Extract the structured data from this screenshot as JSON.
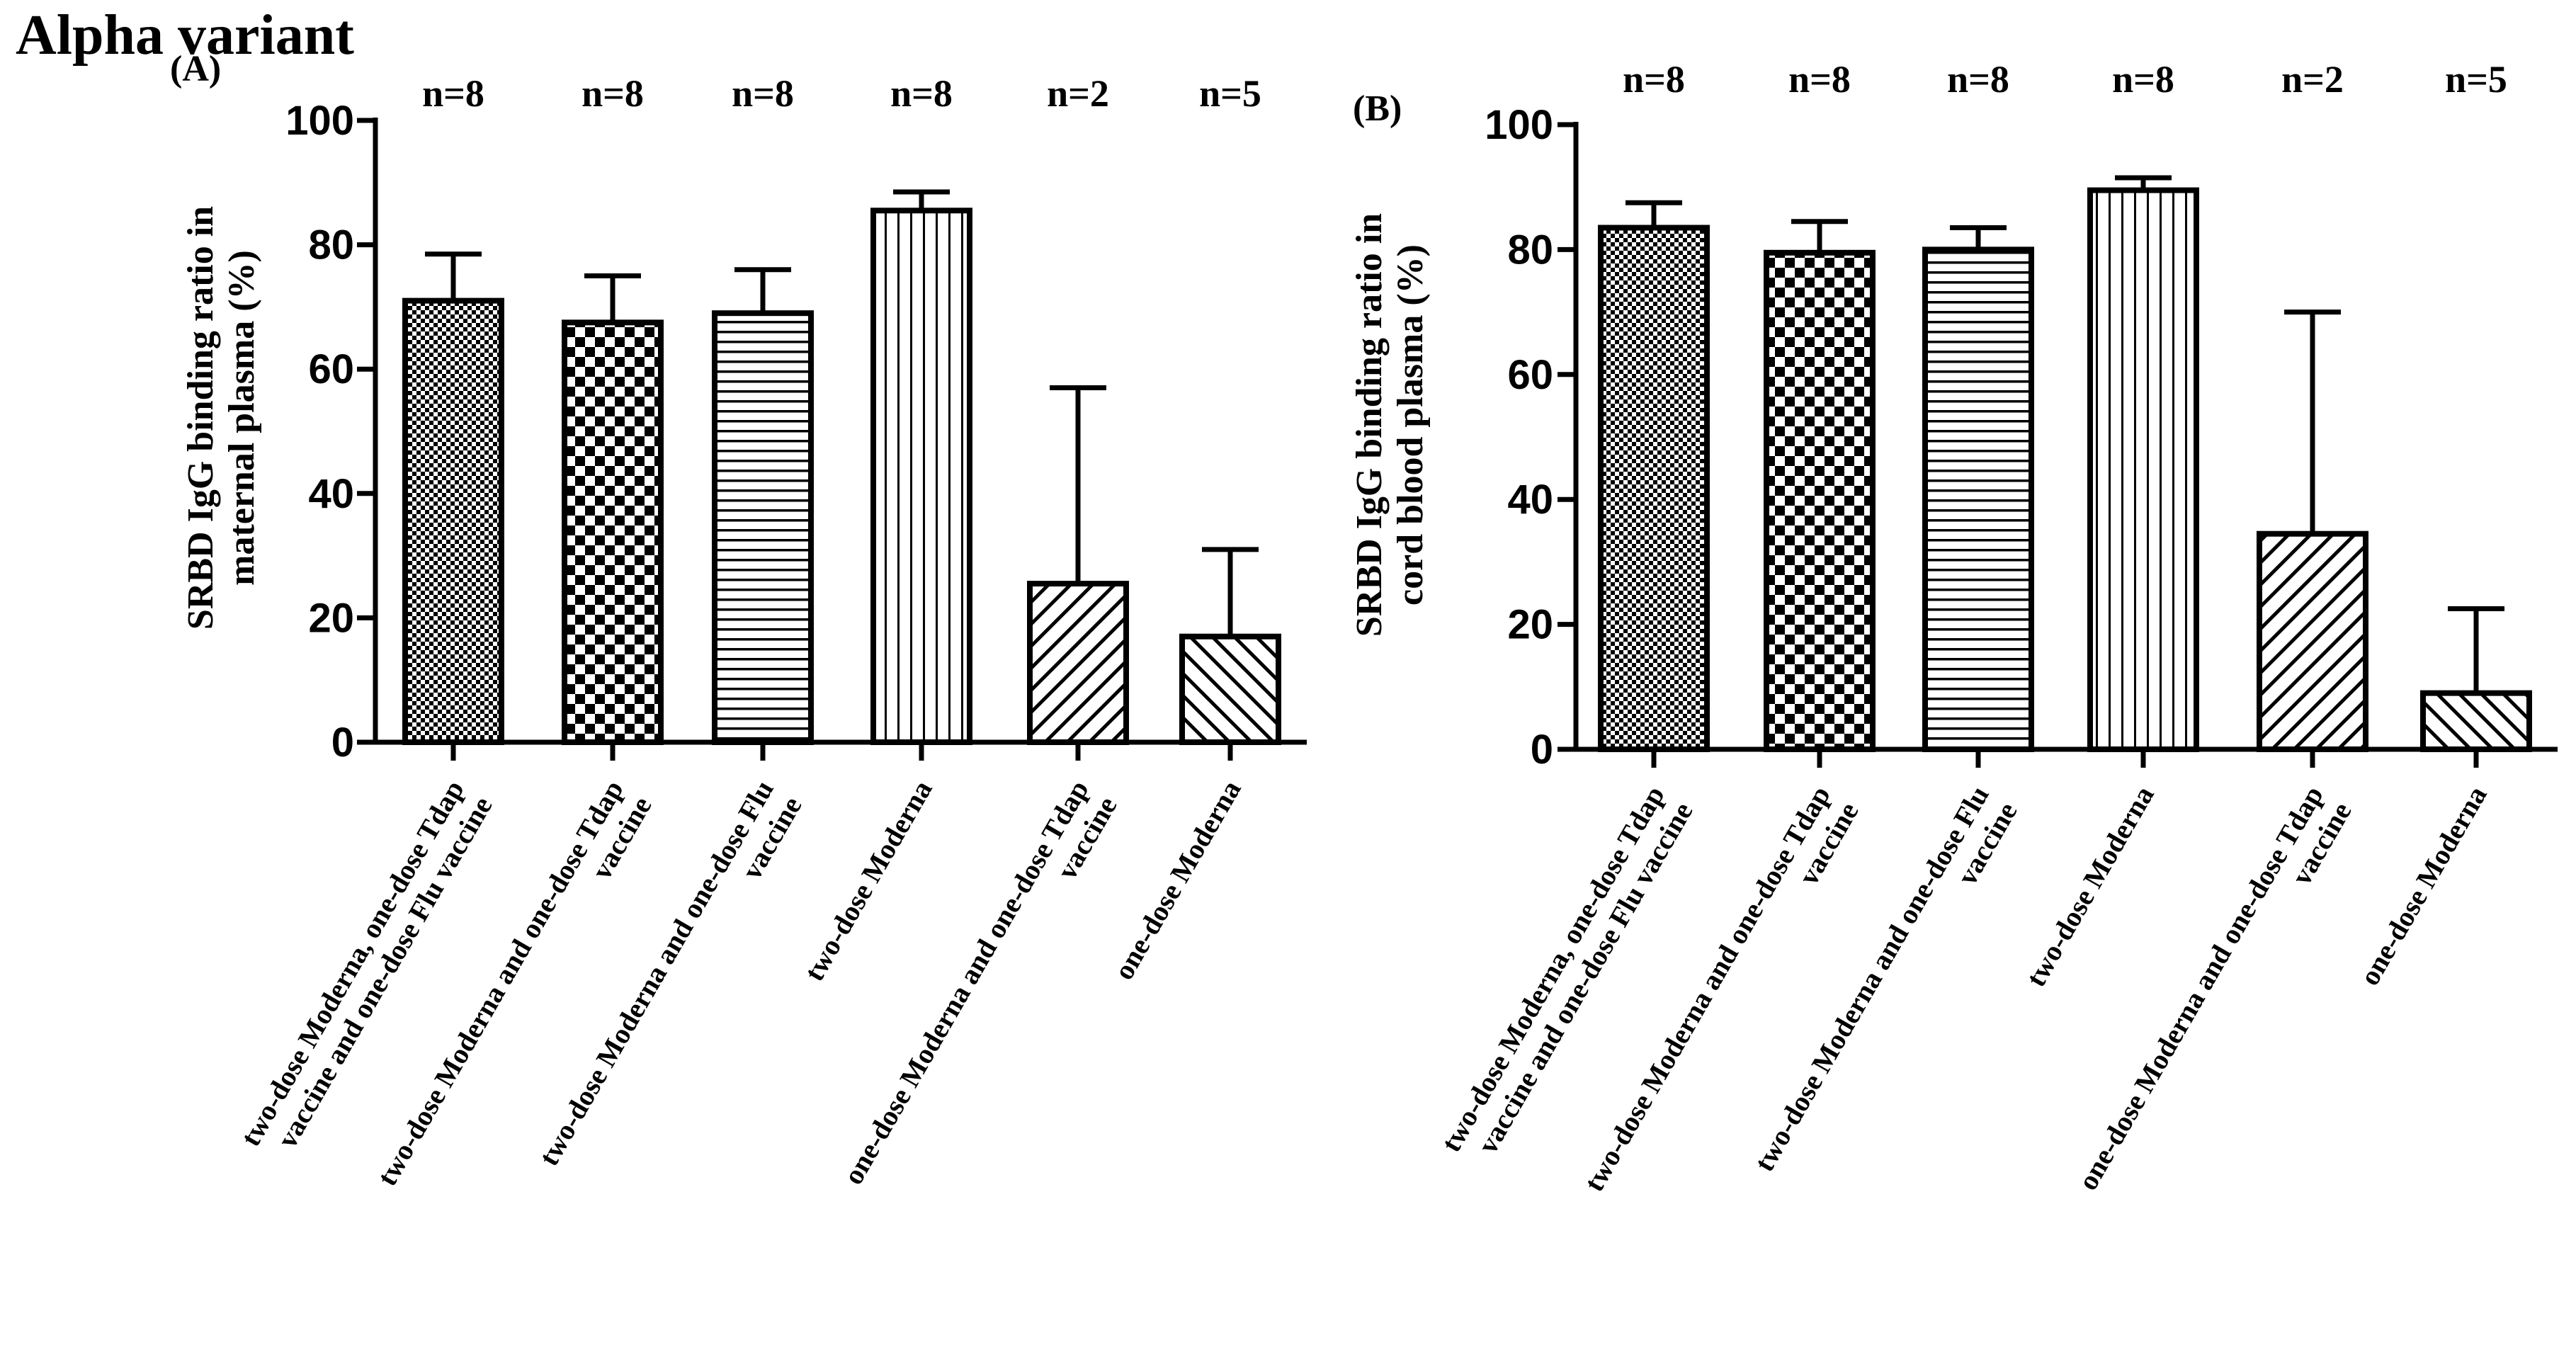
{
  "figure_title": "Alpha variant",
  "colors": {
    "ink": "#000000",
    "background": "#ffffff"
  },
  "chart_data": [
    {
      "type": "bar",
      "panel_label": "(A)",
      "ylabel_lines": [
        "SRBD IgG binding ratio in",
        "maternal plasma (%)"
      ],
      "ylim": [
        0,
        100
      ],
      "yticks": [
        0,
        20,
        40,
        60,
        80,
        100
      ],
      "categories": [
        [
          "two-dose Moderna, one-dose Tdap",
          "vaccine and one-dose Flu vaccine"
        ],
        [
          "two-dose Moderna and one-dose Tdap",
          "vaccine"
        ],
        [
          "two-dose Moderna and one-dose Flu",
          "vaccine"
        ],
        [
          "two-dose Moderna"
        ],
        [
          "one-dose Moderna and one-dose Tdap",
          "vaccine"
        ],
        [
          "one-dose Moderna"
        ]
      ],
      "patterns": [
        "fine-check",
        "checker",
        "horizontal-lines",
        "vertical-lines",
        "diagonal-up",
        "diagonal-down"
      ],
      "values": [
        71,
        67.5,
        69,
        85.5,
        25.5,
        17
      ],
      "error_upper": [
        78.5,
        75,
        76,
        88.5,
        57,
        31
      ],
      "n_labels": [
        "n=8",
        "n=8",
        "n=8",
        "n=8",
        "n=2",
        "n=5"
      ]
    },
    {
      "type": "bar",
      "panel_label": "(B)",
      "ylabel_lines": [
        "SRBD IgG binding ratio in",
        "cord blood plasma (%)"
      ],
      "ylim": [
        0,
        100
      ],
      "yticks": [
        0,
        20,
        40,
        60,
        80,
        100
      ],
      "categories": [
        [
          "two-dose Moderna, one-dose Tdap",
          "vaccine and one-dose Flu vaccine"
        ],
        [
          "two-dose Moderna and one-dose Tdap",
          "vaccine"
        ],
        [
          "two-dose Moderna and one-dose Flu",
          "vaccine"
        ],
        [
          "two-dose Moderna"
        ],
        [
          "one-dose Moderna and one-dose Tdap",
          "vaccine"
        ],
        [
          "one-dose Moderna"
        ]
      ],
      "patterns": [
        "fine-check",
        "checker",
        "horizontal-lines",
        "vertical-lines",
        "diagonal-up",
        "diagonal-down"
      ],
      "values": [
        83.5,
        79.5,
        80,
        89.5,
        34.5,
        9
      ],
      "error_upper": [
        87.5,
        84.5,
        83.5,
        91.5,
        70,
        22.5
      ],
      "n_labels": [
        "n=8",
        "n=8",
        "n=8",
        "n=8",
        "n=2",
        "n=5"
      ]
    }
  ]
}
